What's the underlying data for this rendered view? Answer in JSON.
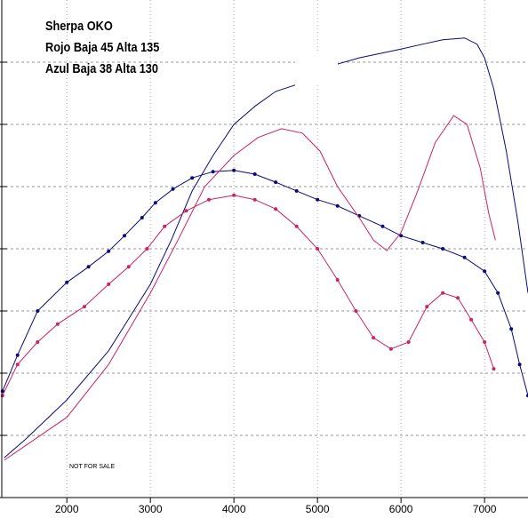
{
  "chart_data": {
    "type": "line",
    "annotations": [
      "Sherpa OKO",
      "Rojo Baja 45 Alta 135",
      "Azul Baja 38 Alta 130"
    ],
    "footnote": "NOT FOR SALE",
    "xlim": [
      1200,
      7520
    ],
    "xticks": [
      2000,
      3000,
      4000,
      5000,
      6000,
      7000
    ],
    "ylim": [
      0,
      8
    ],
    "yticks": [
      1,
      2,
      3,
      4,
      5,
      6,
      7
    ],
    "grid": true,
    "series": [
      {
        "color": "#0a0a7a",
        "markers": false,
        "x": [
          1250,
          1500,
          2000,
          2500,
          3000,
          3250,
          3500,
          3750,
          4000,
          4250,
          4500,
          4750,
          5000,
          5240,
          5500,
          6000,
          6260,
          6500,
          6760,
          6910,
          7000,
          7110,
          7260,
          7400,
          7520
        ],
        "values": [
          0.64,
          0.93,
          1.57,
          2.36,
          3.43,
          4.14,
          4.93,
          5.5,
          6,
          6.29,
          6.53,
          6.64,
          null,
          6.97,
          7.07,
          7.21,
          7.29,
          7.36,
          7.39,
          7.29,
          7.07,
          6.57,
          5.57,
          4.43,
          3.29
        ]
      },
      {
        "color": "#0a0a7a",
        "markers": true,
        "x": [
          1230,
          1410,
          1650,
          2000,
          2260,
          2500,
          2690,
          2900,
          3060,
          3270,
          3500,
          3750,
          4000,
          4250,
          4500,
          4750,
          5000,
          5240,
          5500,
          5780,
          6000,
          6260,
          6500,
          6760,
          7000,
          7160,
          7320,
          7420,
          7520
        ],
        "values": [
          1.71,
          2.29,
          3,
          3.46,
          3.71,
          3.96,
          4.21,
          4.5,
          4.74,
          4.96,
          5.14,
          5.24,
          5.26,
          5.2,
          5.07,
          4.93,
          4.79,
          4.69,
          4.53,
          4.36,
          4.21,
          4.1,
          4,
          3.86,
          3.64,
          3.29,
          2.71,
          2.14,
          1.64
        ]
      },
      {
        "color": "#cc2266",
        "markers": false,
        "x": [
          1250,
          2000,
          2500,
          3000,
          3330,
          3650,
          4000,
          4290,
          4570,
          4820,
          5030,
          5240,
          5500,
          5670,
          5830,
          6000,
          6200,
          6410,
          6630,
          6790,
          6950,
          7050,
          7130
        ],
        "values": [
          0.6,
          1.29,
          2.14,
          3.29,
          4.14,
          5,
          5.5,
          5.79,
          5.93,
          5.86,
          5.57,
          5,
          4.5,
          4.14,
          3.97,
          4.26,
          4.93,
          5.71,
          6.14,
          6,
          5.29,
          4.57,
          4.14
        ]
      },
      {
        "color": "#cc2266",
        "markers": true,
        "x": [
          1230,
          1410,
          1650,
          1890,
          2210,
          2500,
          2740,
          2960,
          3170,
          3430,
          3700,
          4000,
          4250,
          4500,
          4750,
          5000,
          5240,
          5460,
          5670,
          5880,
          6090,
          6310,
          6500,
          6680,
          6840,
          7000,
          7110
        ],
        "values": [
          1.64,
          2.14,
          2.5,
          2.79,
          3.07,
          3.43,
          3.71,
          4,
          4.36,
          4.61,
          4.79,
          4.86,
          4.79,
          4.64,
          4.36,
          4,
          3.5,
          3,
          2.57,
          2.39,
          2.5,
          3.07,
          3.29,
          3.21,
          2.86,
          2.5,
          2.07
        ]
      }
    ]
  }
}
